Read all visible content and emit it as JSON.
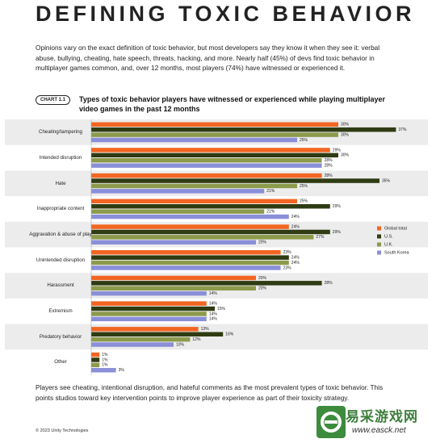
{
  "header": {
    "title": "DEFINING TOXIC BEHAVIOR"
  },
  "intro": "Opinions vary on the exact definition of toxic behavior, but most developers say they know it when they see it: verbal abuse, bullying, cheating, hate speech, threats, hacking, and more. Nearly half (45%) of devs find toxic behavior in multiplayer games common, and, over 12 months, most players (74%) have witnessed or experienced it.",
  "chart_label": "CHART 1.1",
  "chart_data": {
    "type": "hbar",
    "title": "Types of toxic behavior players have witnessed or experienced while playing multiplayer video games in the past 12 months",
    "categories": [
      "Cheating/tampering",
      "Intended disruption",
      "Hate",
      "Inappropriate content",
      "Aggravation & abuse of play",
      "Unintended disruption",
      "Harassment",
      "Extremism",
      "Predatory behavior",
      "Other"
    ],
    "series": [
      {
        "name": "Global total",
        "color": "#f26522",
        "values": [
          30,
          29,
          28,
          25,
          24,
          23,
          20,
          14,
          13,
          1
        ],
        "value_labels": [
          "30%",
          "29%",
          "28%",
          "25%",
          "24%",
          "23%",
          "20%",
          "14%",
          "13%",
          "1%"
        ]
      },
      {
        "name": "U.S.",
        "color": "#2f3b12",
        "values": [
          37,
          30,
          35,
          29,
          29,
          24,
          28,
          15,
          16,
          1
        ],
        "value_labels": [
          "37%",
          "30%",
          "35%",
          "29%",
          "29%",
          "24%",
          "28%",
          "15%",
          "16%",
          "1%"
        ]
      },
      {
        "name": "U.K.",
        "color": "#8c9a4b",
        "values": [
          30,
          28,
          25,
          21,
          27,
          24,
          20,
          14,
          12,
          1
        ],
        "value_labels": [
          "30%",
          "28%",
          "25%",
          "21%",
          "27%",
          "24%",
          "20%",
          "14%",
          "12%",
          "1%"
        ]
      },
      {
        "name": "South Korea",
        "color": "#8a8fd8",
        "values": [
          25,
          28,
          21,
          24,
          20,
          23,
          14,
          14,
          10,
          3
        ],
        "value_labels": [
          "25%",
          "28%",
          "21%",
          "24%",
          "20%",
          "23%",
          "14%",
          "14%",
          "10%",
          "3%"
        ]
      }
    ],
    "legend": "right"
  },
  "footer": "Players see cheating, intentional disruption, and hateful comments as the most prevalent types of toxic behavior. This points studios toward key intervention points to improve player experience as part of their toxicity strategy.",
  "copyright": "© 2023 Unity Technologies",
  "watermark": {
    "name": "易采游戏网",
    "url": "www.easck.net"
  }
}
